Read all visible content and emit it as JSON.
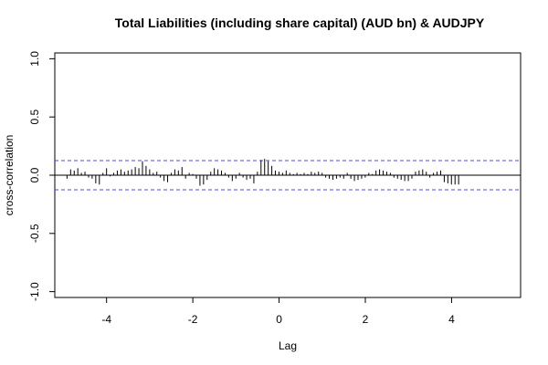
{
  "chart_data": {
    "type": "bar",
    "title": "Total Liabilities (including share capital) (AUD bn)  & AUDJPY",
    "xlabel": "Lag",
    "ylabel": "cross-correlation",
    "xlim": [
      -5.2,
      5.6
    ],
    "ylim": [
      -1.05,
      1.05
    ],
    "x_ticks": [
      -4,
      -2,
      0,
      2,
      4
    ],
    "x_tick_labels": [
      "-4",
      "-2",
      "0",
      "2",
      "4"
    ],
    "y_ticks": [
      -1.0,
      -0.5,
      0.0,
      0.5,
      1.0
    ],
    "y_tick_labels": [
      "-1.0",
      "-0.5",
      "0.0",
      "0.5",
      "1.0"
    ],
    "confidence_level": 0.125,
    "confidence_color": "#4a4ae6",
    "lag_step": 0.0833,
    "lag_start": -4.9167,
    "values": [
      -0.03,
      0.05,
      0.04,
      0.06,
      0.02,
      0.03,
      -0.02,
      -0.03,
      -0.07,
      -0.08,
      0.02,
      0.06,
      -0.01,
      0.02,
      0.04,
      0.05,
      0.03,
      0.04,
      0.05,
      0.07,
      0.06,
      0.12,
      0.08,
      0.05,
      0.02,
      0.03,
      -0.02,
      -0.05,
      -0.06,
      0.02,
      0.05,
      0.04,
      0.07,
      -0.03,
      0.02,
      0.01,
      -0.03,
      -0.09,
      -0.08,
      -0.04,
      0.03,
      0.06,
      0.05,
      0.04,
      0.02,
      -0.02,
      -0.05,
      -0.03,
      0.02,
      -0.02,
      -0.04,
      -0.03,
      -0.07,
      0.03,
      0.13,
      0.14,
      0.12,
      0.08,
      0.04,
      0.03,
      0.02,
      0.04,
      0.02,
      0.01,
      0.02,
      0.01,
      0.02,
      0.01,
      0.03,
      0.02,
      0.03,
      0.02,
      -0.02,
      -0.03,
      -0.04,
      -0.03,
      -0.02,
      -0.03,
      0.02,
      -0.03,
      -0.05,
      -0.04,
      -0.03,
      -0.02,
      0.02,
      0.01,
      0.04,
      0.05,
      0.04,
      0.03,
      0.02,
      -0.02,
      -0.03,
      -0.04,
      -0.05,
      -0.05,
      -0.03,
      0.03,
      0.04,
      0.05,
      0.03,
      -0.02,
      0.02,
      0.03,
      0.04,
      -0.06,
      -0.07,
      -0.08,
      -0.08,
      -0.08
    ]
  }
}
